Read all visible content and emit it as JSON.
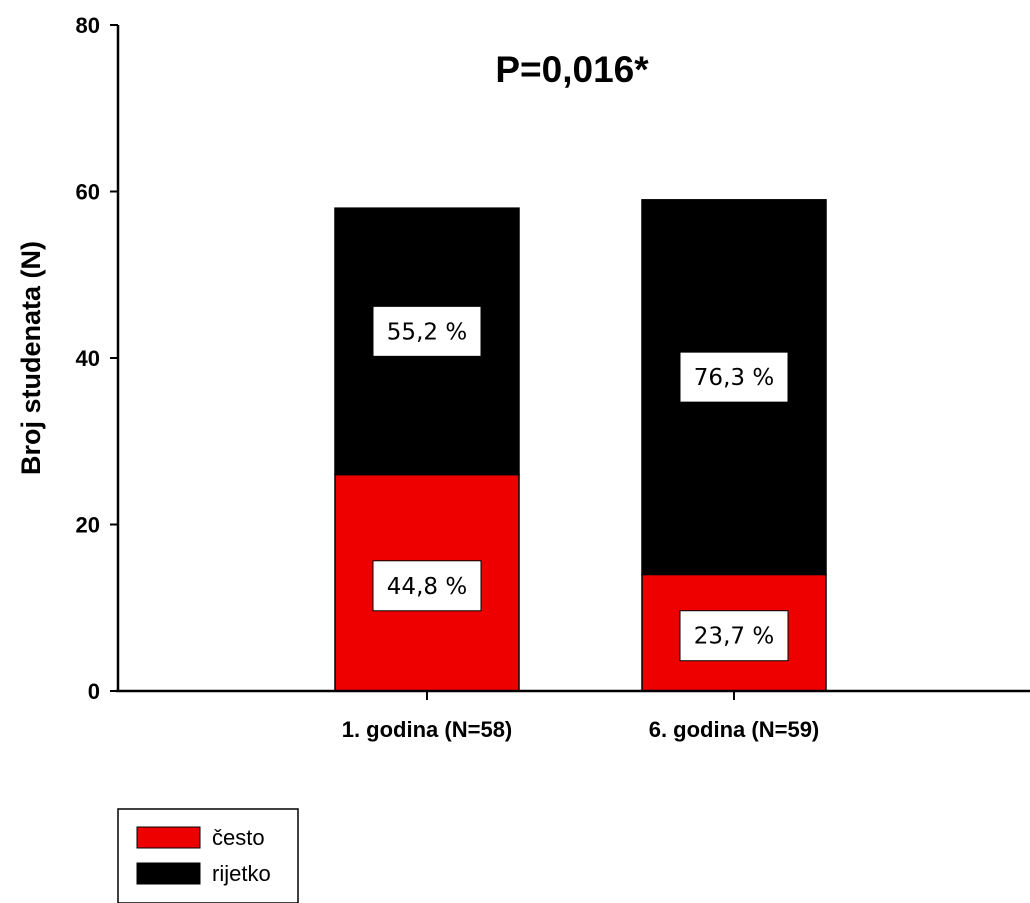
{
  "chart_data": {
    "type": "bar",
    "stacked": true,
    "title": "P=0,016*",
    "xlabel": "",
    "ylabel": "Broj studenata (N)",
    "ylim": [
      0,
      80
    ],
    "yticks": [
      "0",
      "20",
      "40",
      "60",
      "80"
    ],
    "ytick_values": [
      0,
      20,
      40,
      60,
      80
    ],
    "categories": [
      "1. godina (N=58)",
      "6. godina (N=59)"
    ],
    "series": [
      {
        "name": "često",
        "values": [
          26,
          14
        ],
        "labels": [
          "44,8 %",
          "23,7 %"
        ],
        "color": "#ee0000"
      },
      {
        "name": "rijetko",
        "values": [
          32,
          45
        ],
        "labels": [
          "55,2 %",
          "76,3 %"
        ],
        "color": "#000000"
      }
    ],
    "legend_position": "bottom-left",
    "grid": false
  }
}
